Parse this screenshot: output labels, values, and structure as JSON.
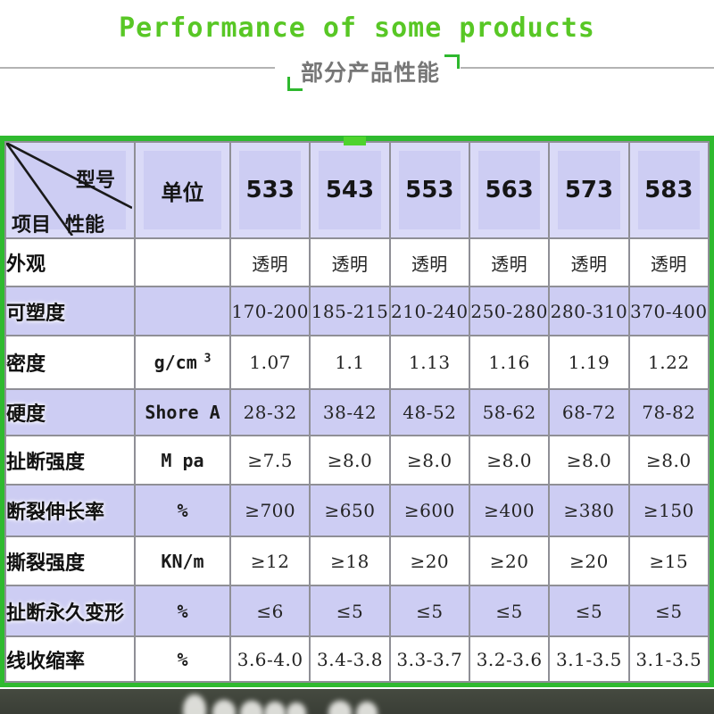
{
  "page": {
    "title_en": "Performance of some products",
    "subtitle_cn": "部分产品性能"
  },
  "table": {
    "corner": {
      "model": "型号",
      "performance": "性能",
      "item": "项目"
    },
    "unit_header": "单位",
    "models": [
      "533",
      "543",
      "553",
      "563",
      "573",
      "583"
    ],
    "rows": [
      {
        "label": "外观",
        "unit": "",
        "values": [
          "透明",
          "透明",
          "透明",
          "透明",
          "透明",
          "透明"
        ],
        "shaded": false
      },
      {
        "label": "可塑度",
        "unit": "",
        "values": [
          "170-200",
          "185-215",
          "210-240",
          "250-280",
          "280-310",
          "370-400"
        ],
        "shaded": true
      },
      {
        "label": "密度",
        "unit": "g/cm",
        "unit_sup": "3",
        "values": [
          "1.07",
          "1.1",
          "1.13",
          "1.16",
          "1.19",
          "1.22"
        ],
        "shaded": false
      },
      {
        "label": "硬度",
        "unit": "Shore A",
        "values": [
          "28-32",
          "38-42",
          "48-52",
          "58-62",
          "68-72",
          "78-82"
        ],
        "shaded": true
      },
      {
        "label": "扯断强度",
        "unit": "M pa",
        "values": [
          "≥7.5",
          "≥8.0",
          "≥8.0",
          "≥8.0",
          "≥8.0",
          "≥8.0"
        ],
        "shaded": false
      },
      {
        "label": "断裂伸长率",
        "unit": "%",
        "values": [
          "≥700",
          "≥650",
          "≥600",
          "≥400",
          "≥380",
          "≥150"
        ],
        "shaded": true
      },
      {
        "label": "撕裂强度",
        "unit": "KN/m",
        "values": [
          "≥12",
          "≥18",
          "≥20",
          "≥20",
          "≥20",
          "≥15"
        ],
        "shaded": false
      },
      {
        "label": "扯断永久变形",
        "unit": "%",
        "values": [
          "≤6",
          "≤5",
          "≤5",
          "≤5",
          "≤5",
          "≤5"
        ],
        "shaded": true
      },
      {
        "label": "线收缩率",
        "unit": "%",
        "values": [
          "3.6-4.0",
          "3.4-3.8",
          "3.3-3.7",
          "3.2-3.6",
          "3.1-3.5",
          "3.1-3.5"
        ],
        "shaded": false
      }
    ]
  },
  "colors": {
    "title_green": "#58c725",
    "border_green": "#2fba2f",
    "notch_green": "#4ed32e",
    "lavender": "#cdcdf3",
    "subtitle_gray": "#767676",
    "grid_gray": "#8f8f96"
  }
}
